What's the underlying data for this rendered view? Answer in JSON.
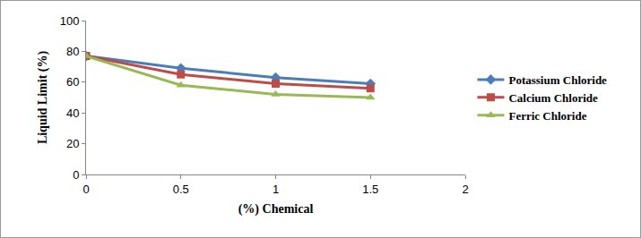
{
  "chart_data": {
    "type": "line",
    "x_label": "(%) Chemical",
    "y_label": "Liquid Limit (%)",
    "x": [
      0,
      0.5,
      1,
      1.5
    ],
    "series": [
      {
        "name": "Potassium Chloride",
        "color": "#4a7ebb",
        "marker": "diamond",
        "values": [
          77,
          69,
          63,
          59
        ]
      },
      {
        "name": "Calcium Chloride",
        "color": "#be4b48",
        "marker": "square",
        "values": [
          77,
          65,
          59,
          56
        ]
      },
      {
        "name": "Ferric Chloride",
        "color": "#98b954",
        "marker": "triangle-up",
        "values": [
          77,
          58,
          52,
          50
        ]
      }
    ],
    "xlim": [
      0,
      2
    ],
    "xticks": [
      0,
      0.5,
      1,
      1.5,
      2
    ],
    "ylim": [
      0,
      100
    ],
    "yticks": [
      0,
      20,
      40,
      60,
      80,
      100
    ],
    "grid": false,
    "legend": "right"
  }
}
